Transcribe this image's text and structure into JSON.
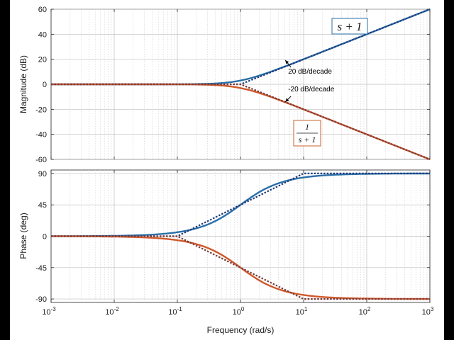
{
  "chart_data": [
    {
      "type": "line",
      "ylabel": "Magnitude (dB)",
      "xscale": "log",
      "xlim": [
        0.001,
        1000
      ],
      "ylim": [
        -60,
        60
      ],
      "yticks": [
        -60,
        -40,
        -20,
        0,
        20,
        40,
        60
      ],
      "grid": true,
      "series": [
        {
          "name": "s + 1",
          "kind": "exact",
          "color": "#2a6fa8",
          "x": [
            0.001,
            0.01,
            0.1,
            0.3,
            0.5,
            1,
            2,
            5,
            10,
            100,
            1000
          ],
          "y": [
            0,
            0,
            0.04,
            0.37,
            0.97,
            3.01,
            6.99,
            14.15,
            20.04,
            40,
            60
          ]
        },
        {
          "name": "s + 1",
          "kind": "asymptote",
          "color": "#1f3a7a",
          "x": [
            0.001,
            1,
            1000
          ],
          "y": [
            0,
            0,
            60
          ]
        },
        {
          "name": "1/(s + 1)",
          "kind": "exact",
          "color": "#d0582a",
          "x": [
            0.001,
            0.01,
            0.1,
            0.3,
            0.5,
            1,
            2,
            5,
            10,
            100,
            1000
          ],
          "y": [
            0,
            0,
            -0.04,
            -0.37,
            -0.97,
            -3.01,
            -6.99,
            -14.15,
            -20.04,
            -40,
            -60
          ]
        },
        {
          "name": "1/(s + 1)",
          "kind": "asymptote",
          "color": "#7a3a3a",
          "x": [
            0.001,
            1,
            1000
          ],
          "y": [
            0,
            0,
            -60
          ]
        }
      ],
      "annotations": [
        {
          "text": "20 dB/decade",
          "x": 5.0,
          "y": 8.5
        },
        {
          "text": "-20 dB/decade",
          "x": 5.0,
          "y": -9
        }
      ],
      "labels": {
        "top": "s + 1",
        "bottom_num": "1",
        "bottom_den": "s + 1"
      }
    },
    {
      "type": "line",
      "xlabel": "Frequency  (rad/s)",
      "ylabel": "Phase (deg)",
      "xscale": "log",
      "xlim": [
        0.001,
        1000
      ],
      "ylim": [
        -95,
        95
      ],
      "yticks": [
        -90,
        -45,
        0,
        45,
        90
      ],
      "xticks": [
        "10^-3",
        "10^-2",
        "10^-1",
        "10^0",
        "10^1",
        "10^2",
        "10^3"
      ],
      "grid": true,
      "series": [
        {
          "name": "s + 1",
          "kind": "exact",
          "color": "#2a6fa8",
          "x": [
            0.001,
            0.01,
            0.1,
            0.2,
            0.5,
            1,
            2,
            5,
            10,
            100,
            1000
          ],
          "y": [
            0.06,
            0.57,
            5.7,
            11.3,
            26.6,
            45,
            63.4,
            78.7,
            84.3,
            89.4,
            89.9
          ]
        },
        {
          "name": "s + 1",
          "kind": "asymptote",
          "color": "#1f3a7a",
          "x": [
            0.001,
            0.1,
            10,
            1000
          ],
          "y": [
            0,
            0,
            90,
            90
          ]
        },
        {
          "name": "1/(s + 1)",
          "kind": "exact",
          "color": "#d0582a",
          "x": [
            0.001,
            0.01,
            0.1,
            0.2,
            0.5,
            1,
            2,
            5,
            10,
            100,
            1000
          ],
          "y": [
            -0.06,
            -0.57,
            -5.7,
            -11.3,
            -26.6,
            -45,
            -63.4,
            -78.7,
            -84.3,
            -89.4,
            -89.9
          ]
        },
        {
          "name": "1/(s + 1)",
          "kind": "asymptote",
          "color": "#7a3a3a",
          "x": [
            0.001,
            0.1,
            10,
            1000
          ],
          "y": [
            0,
            0,
            -90,
            -90
          ]
        }
      ]
    }
  ]
}
